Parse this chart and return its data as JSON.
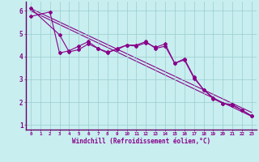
{
  "xlabel": "Windchill (Refroidissement éolien,°C)",
  "bg_color": "#c8eef0",
  "line_color": "#880088",
  "spine_color": "#660066",
  "xlim": [
    -0.5,
    23.5
  ],
  "ylim": [
    0.8,
    6.4
  ],
  "xticks": [
    0,
    1,
    2,
    3,
    4,
    5,
    6,
    7,
    8,
    9,
    10,
    11,
    12,
    13,
    14,
    15,
    16,
    17,
    18,
    19,
    20,
    21,
    22,
    23
  ],
  "yticks": [
    1,
    2,
    3,
    4,
    5,
    6
  ],
  "grid_color": "#99cccc",
  "line1_x": [
    0,
    3,
    4,
    5,
    6,
    7,
    8,
    9,
    10,
    11,
    12,
    13,
    14,
    15,
    16,
    17,
    18,
    19,
    20,
    21,
    22,
    23
  ],
  "line1_y": [
    6.1,
    4.95,
    4.2,
    4.3,
    4.55,
    4.35,
    4.15,
    4.35,
    4.5,
    4.45,
    4.6,
    4.4,
    4.55,
    3.7,
    3.9,
    3.1,
    2.55,
    2.2,
    1.95,
    1.9,
    1.65,
    1.4
  ],
  "line2_x": [
    0,
    2,
    3,
    4,
    5,
    6,
    7,
    8,
    9,
    10,
    11,
    12,
    13,
    14,
    15,
    16,
    17,
    18,
    19,
    20,
    21,
    22,
    23
  ],
  "line2_y": [
    5.75,
    5.95,
    4.15,
    4.25,
    4.45,
    4.65,
    4.35,
    4.2,
    4.3,
    4.5,
    4.5,
    4.65,
    4.35,
    4.45,
    3.7,
    3.85,
    3.05,
    2.55,
    2.15,
    1.95,
    1.85,
    1.65,
    1.4
  ],
  "regline1_x": [
    0,
    23
  ],
  "regline1_y": [
    6.1,
    1.55
  ],
  "regline2_x": [
    0,
    23
  ],
  "regline2_y": [
    6.0,
    1.38
  ]
}
